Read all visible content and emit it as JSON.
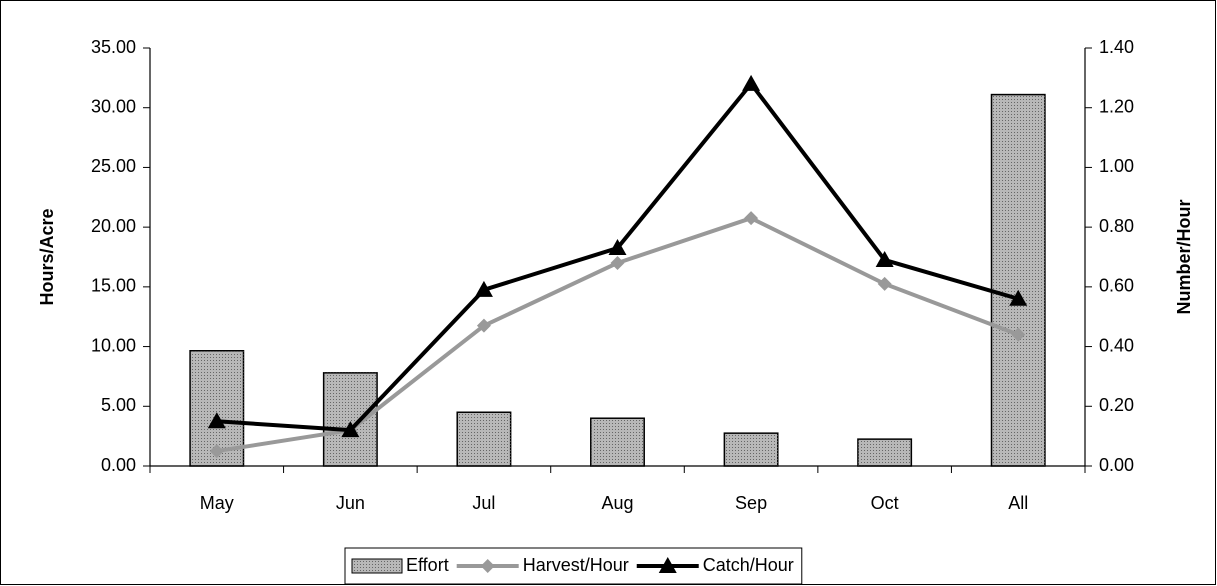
{
  "chart_data": {
    "type": "bar",
    "categories": [
      "May",
      "Jun",
      "Jul",
      "Aug",
      "Sep",
      "Oct",
      "All"
    ],
    "series": [
      {
        "name": "Effort",
        "type": "bar",
        "axis": "y",
        "color": "#c8c8c8",
        "values": [
          9.65,
          7.8,
          4.5,
          4.0,
          2.75,
          2.25,
          31.1
        ]
      },
      {
        "name": "Harvest/Hour",
        "type": "line",
        "axis": "y2",
        "color": "#999999",
        "marker": "diamond",
        "values": [
          0.05,
          0.12,
          0.47,
          0.68,
          0.83,
          0.61,
          0.44
        ]
      },
      {
        "name": "Catch/Hour",
        "type": "line",
        "axis": "y2",
        "color": "#000000",
        "marker": "triangle",
        "values": [
          0.15,
          0.12,
          0.59,
          0.73,
          1.28,
          0.69,
          0.56
        ]
      }
    ],
    "ylabel": "Hours/Acre",
    "y2label": "Number/Hour",
    "ylim": [
      0,
      35
    ],
    "yticks": [
      {
        "value": 0,
        "label": "0.00"
      },
      {
        "value": 5,
        "label": "5.00"
      },
      {
        "value": 10,
        "label": "10.00"
      },
      {
        "value": 15,
        "label": "15.00"
      },
      {
        "value": 20,
        "label": "20.00"
      },
      {
        "value": 25,
        "label": "25.00"
      },
      {
        "value": 30,
        "label": "30.00"
      },
      {
        "value": 35,
        "label": "35.00"
      }
    ],
    "y2lim": [
      0,
      1.4
    ],
    "y2ticks": [
      {
        "value": 0,
        "label": "0.00"
      },
      {
        "value": 0.2,
        "label": "0.20"
      },
      {
        "value": 0.4,
        "label": "0.40"
      },
      {
        "value": 0.6,
        "label": "0.60"
      },
      {
        "value": 0.8,
        "label": "0.80"
      },
      {
        "value": 1.0,
        "label": "1.00"
      },
      {
        "value": 1.2,
        "label": "1.20"
      },
      {
        "value": 1.4,
        "label": "1.40"
      }
    ],
    "grid": false,
    "legend": "bottom"
  }
}
